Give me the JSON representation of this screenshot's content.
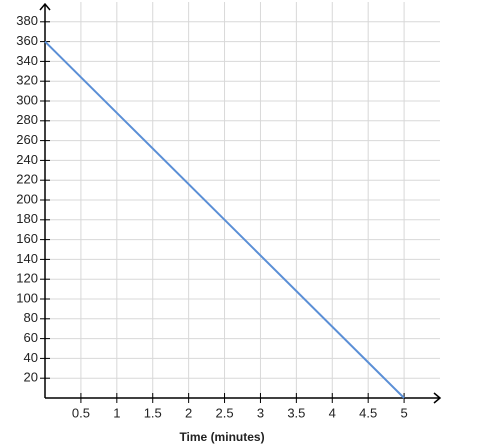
{
  "chart_data": {
    "type": "line",
    "x_label": "Time (minutes)",
    "x": [
      0,
      5
    ],
    "series": [
      {
        "color": "#5b8fd6",
        "values": [
          360,
          0
        ]
      }
    ],
    "xlim": [
      0,
      5.5
    ],
    "xticks": [
      0.5,
      1,
      1.5,
      2,
      2.5,
      3,
      3.5,
      4,
      4.5,
      5
    ],
    "ylim": [
      0,
      400
    ],
    "yticks": [
      20,
      40,
      60,
      80,
      100,
      120,
      140,
      160,
      180,
      200,
      220,
      240,
      260,
      280,
      300,
      320,
      340,
      360,
      380
    ],
    "grid": true
  }
}
